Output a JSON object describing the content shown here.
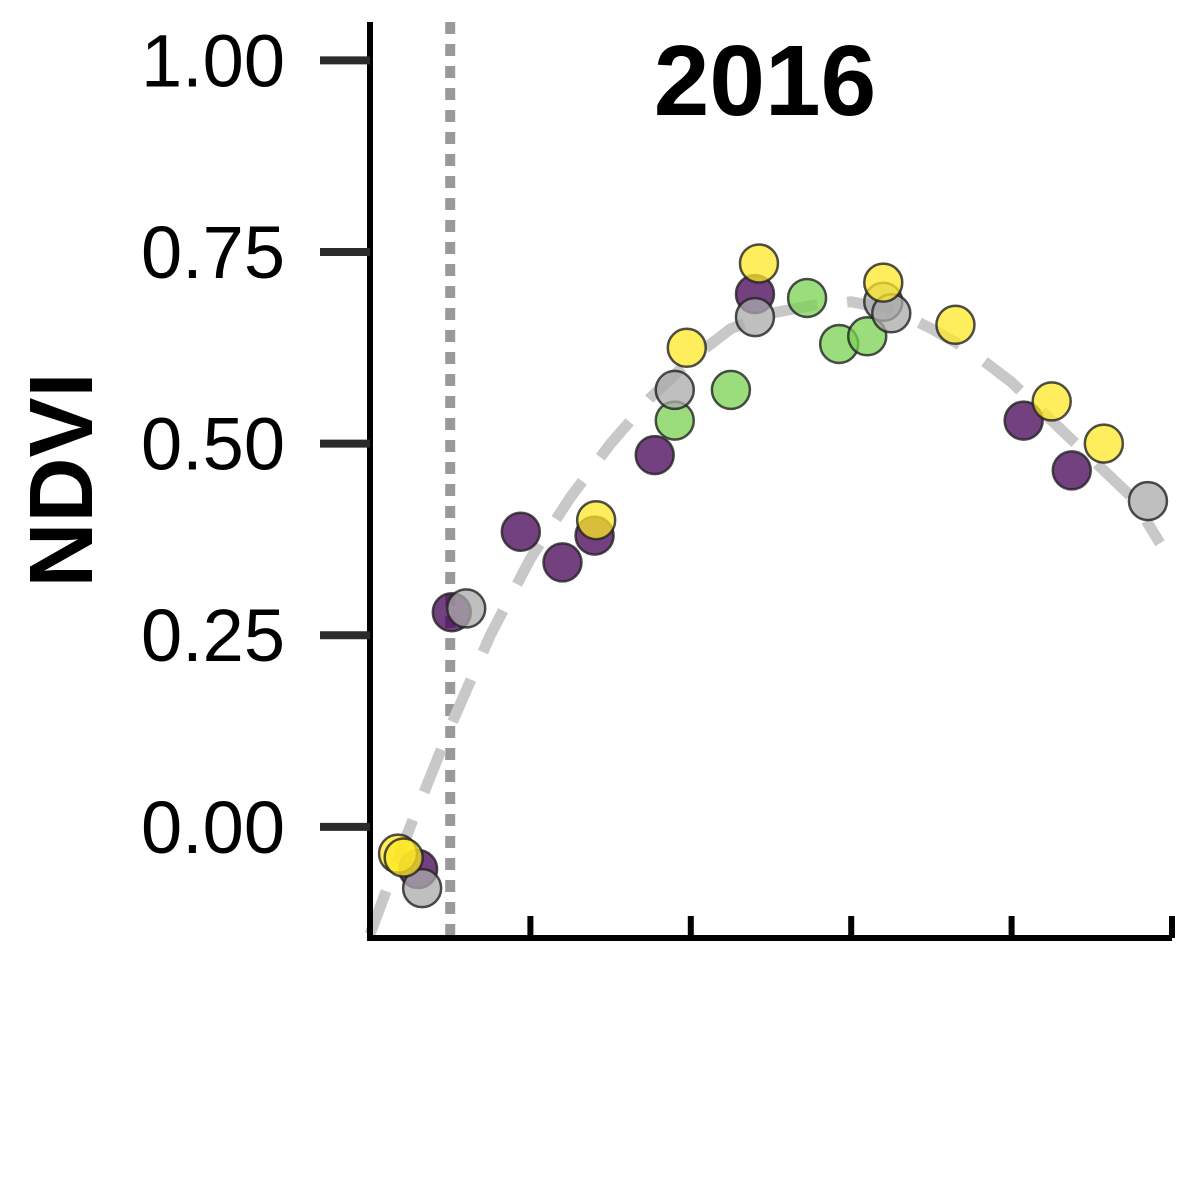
{
  "chart_data": {
    "type": "scatter",
    "title": "2016",
    "ylabel": "NDVI",
    "xlabel": "",
    "ylim": [
      -0.145,
      1.05
    ],
    "xlim": [
      0,
      10
    ],
    "y_ticks": [
      "0.00",
      "0.25",
      "0.50",
      "0.75",
      "1.00"
    ],
    "y_tick_values": [
      0.0,
      0.25,
      0.5,
      0.75,
      1.0
    ],
    "x_ticks": [
      0,
      2,
      4,
      6,
      8,
      10
    ],
    "grid": false,
    "vertical_reference_line": {
      "x": 1.0,
      "color": "#999999",
      "style": "dotted"
    },
    "fit_curve": {
      "color": "#c8c8c8",
      "style": "dashed",
      "points": [
        {
          "x": 0.0,
          "y": -0.14
        },
        {
          "x": 0.5,
          "y": 0.0
        },
        {
          "x": 1.0,
          "y": 0.13
        },
        {
          "x": 1.5,
          "y": 0.25
        },
        {
          "x": 2.0,
          "y": 0.35
        },
        {
          "x": 2.5,
          "y": 0.43
        },
        {
          "x": 3.0,
          "y": 0.5
        },
        {
          "x": 3.5,
          "y": 0.56
        },
        {
          "x": 4.0,
          "y": 0.61
        },
        {
          "x": 4.5,
          "y": 0.65
        },
        {
          "x": 5.0,
          "y": 0.67
        },
        {
          "x": 5.5,
          "y": 0.68
        },
        {
          "x": 6.0,
          "y": 0.685
        },
        {
          "x": 6.5,
          "y": 0.675
        },
        {
          "x": 7.0,
          "y": 0.65
        },
        {
          "x": 7.5,
          "y": 0.62
        },
        {
          "x": 8.0,
          "y": 0.58
        },
        {
          "x": 8.5,
          "y": 0.53
        },
        {
          "x": 9.0,
          "y": 0.48
        },
        {
          "x": 9.5,
          "y": 0.43
        },
        {
          "x": 9.85,
          "y": 0.37
        }
      ]
    },
    "series": [
      {
        "color": "#440154",
        "points": [
          {
            "x": 0.6,
            "y": -0.055
          },
          {
            "x": 1.02,
            "y": 0.28
          },
          {
            "x": 1.88,
            "y": 0.385
          },
          {
            "x": 2.4,
            "y": 0.345
          },
          {
            "x": 2.8,
            "y": 0.38
          },
          {
            "x": 3.55,
            "y": 0.485
          },
          {
            "x": 4.8,
            "y": 0.695
          },
          {
            "x": 8.15,
            "y": 0.53
          },
          {
            "x": 8.75,
            "y": 0.465
          }
        ]
      },
      {
        "color": "#7ad151",
        "points": [
          {
            "x": 3.8,
            "y": 0.53
          },
          {
            "x": 4.5,
            "y": 0.57
          },
          {
            "x": 5.45,
            "y": 0.69
          },
          {
            "x": 5.85,
            "y": 0.63
          },
          {
            "x": 6.2,
            "y": 0.64
          }
        ]
      },
      {
        "color": "#aaaaaa",
        "points": [
          {
            "x": 0.65,
            "y": -0.08
          },
          {
            "x": 1.2,
            "y": 0.285
          },
          {
            "x": 3.8,
            "y": 0.57
          },
          {
            "x": 4.8,
            "y": 0.665
          },
          {
            "x": 6.4,
            "y": 0.685
          },
          {
            "x": 6.5,
            "y": 0.67
          },
          {
            "x": 9.7,
            "y": 0.425
          }
        ]
      },
      {
        "color": "#fde725",
        "points": [
          {
            "x": 0.35,
            "y": -0.035
          },
          {
            "x": 0.42,
            "y": -0.04
          },
          {
            "x": 2.82,
            "y": 0.4
          },
          {
            "x": 3.95,
            "y": 0.625
          },
          {
            "x": 4.85,
            "y": 0.735
          },
          {
            "x": 6.4,
            "y": 0.71
          },
          {
            "x": 7.3,
            "y": 0.655
          },
          {
            "x": 8.5,
            "y": 0.555
          },
          {
            "x": 9.15,
            "y": 0.5
          }
        ]
      }
    ]
  }
}
